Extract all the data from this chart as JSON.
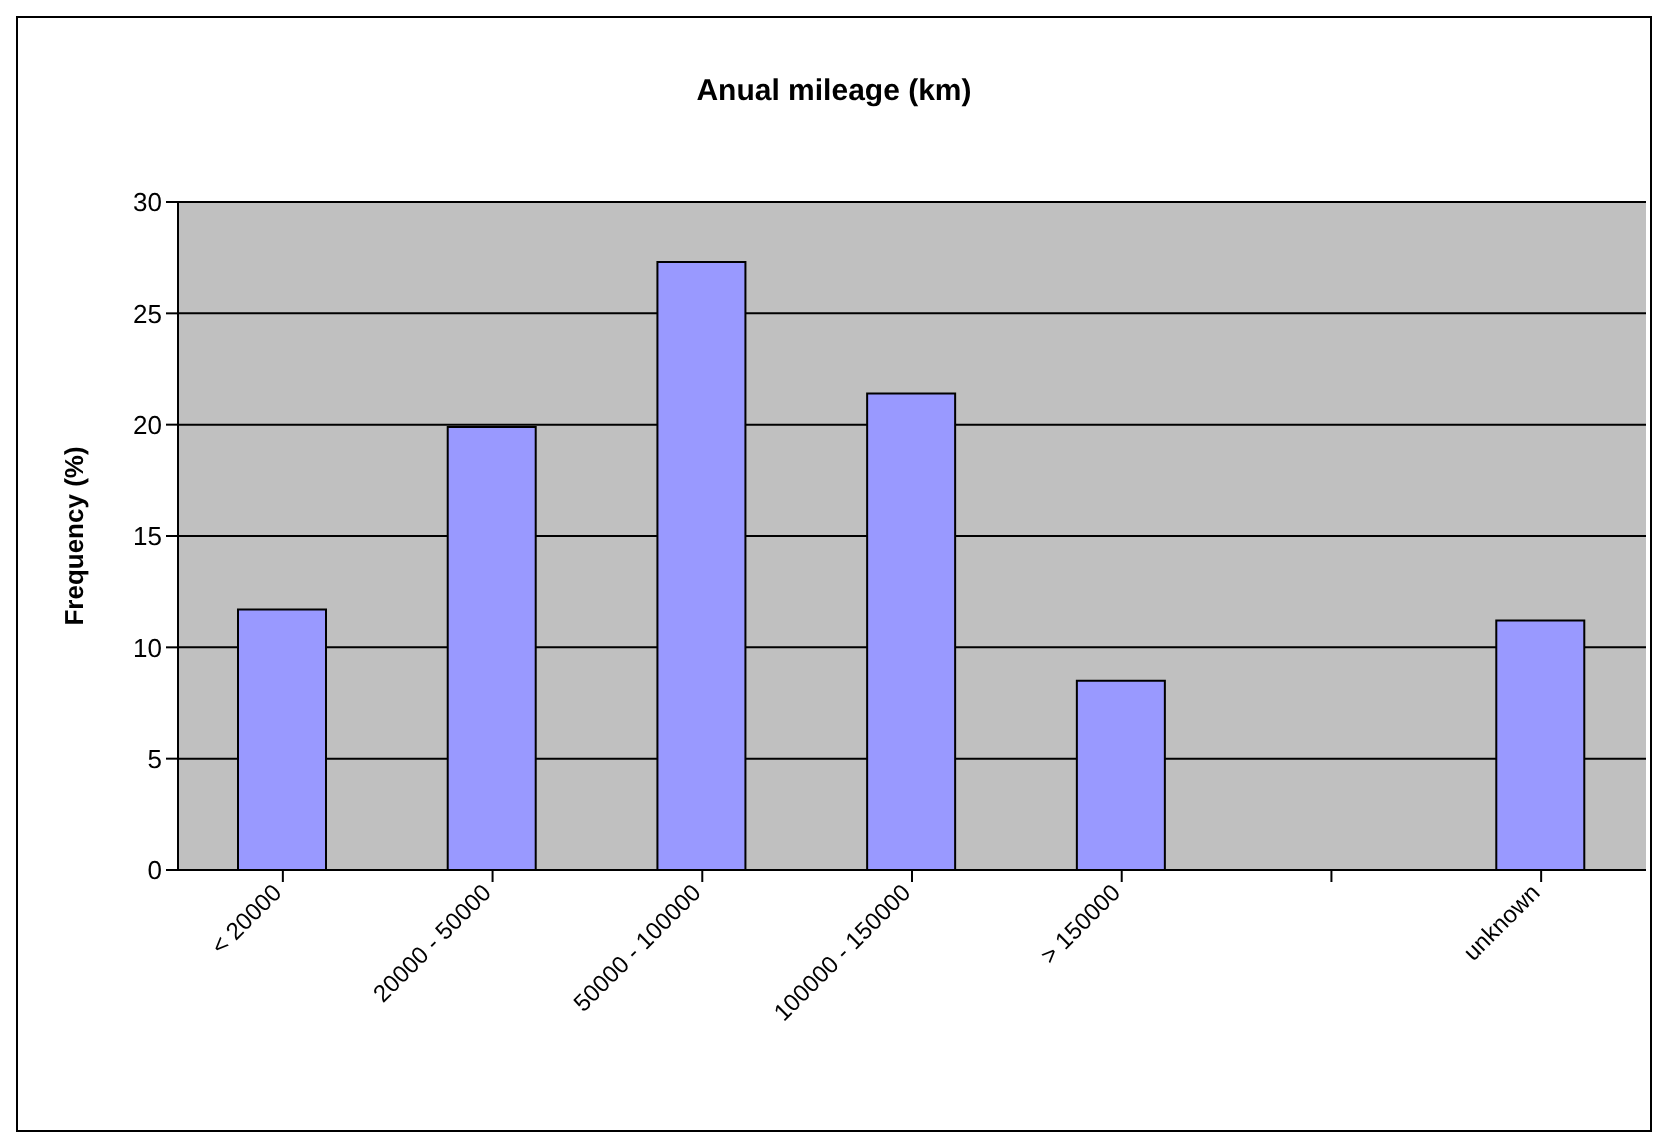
{
  "chart_data": {
    "type": "bar",
    "title": "Anual mileage (km)",
    "ylabel": "Frequency (%)",
    "categories": [
      "< 20000",
      "20000 - 50000",
      "50000 - 100000",
      "100000 - 150000",
      "> 150000",
      null,
      "unknown"
    ],
    "values": [
      11.7,
      19.9,
      27.3,
      21.4,
      8.5,
      null,
      11.2
    ],
    "color": "#9999ff",
    "ylim": [
      0,
      30
    ],
    "yticks": [
      0,
      5,
      10,
      15,
      20,
      25,
      30
    ],
    "grid": "y"
  }
}
